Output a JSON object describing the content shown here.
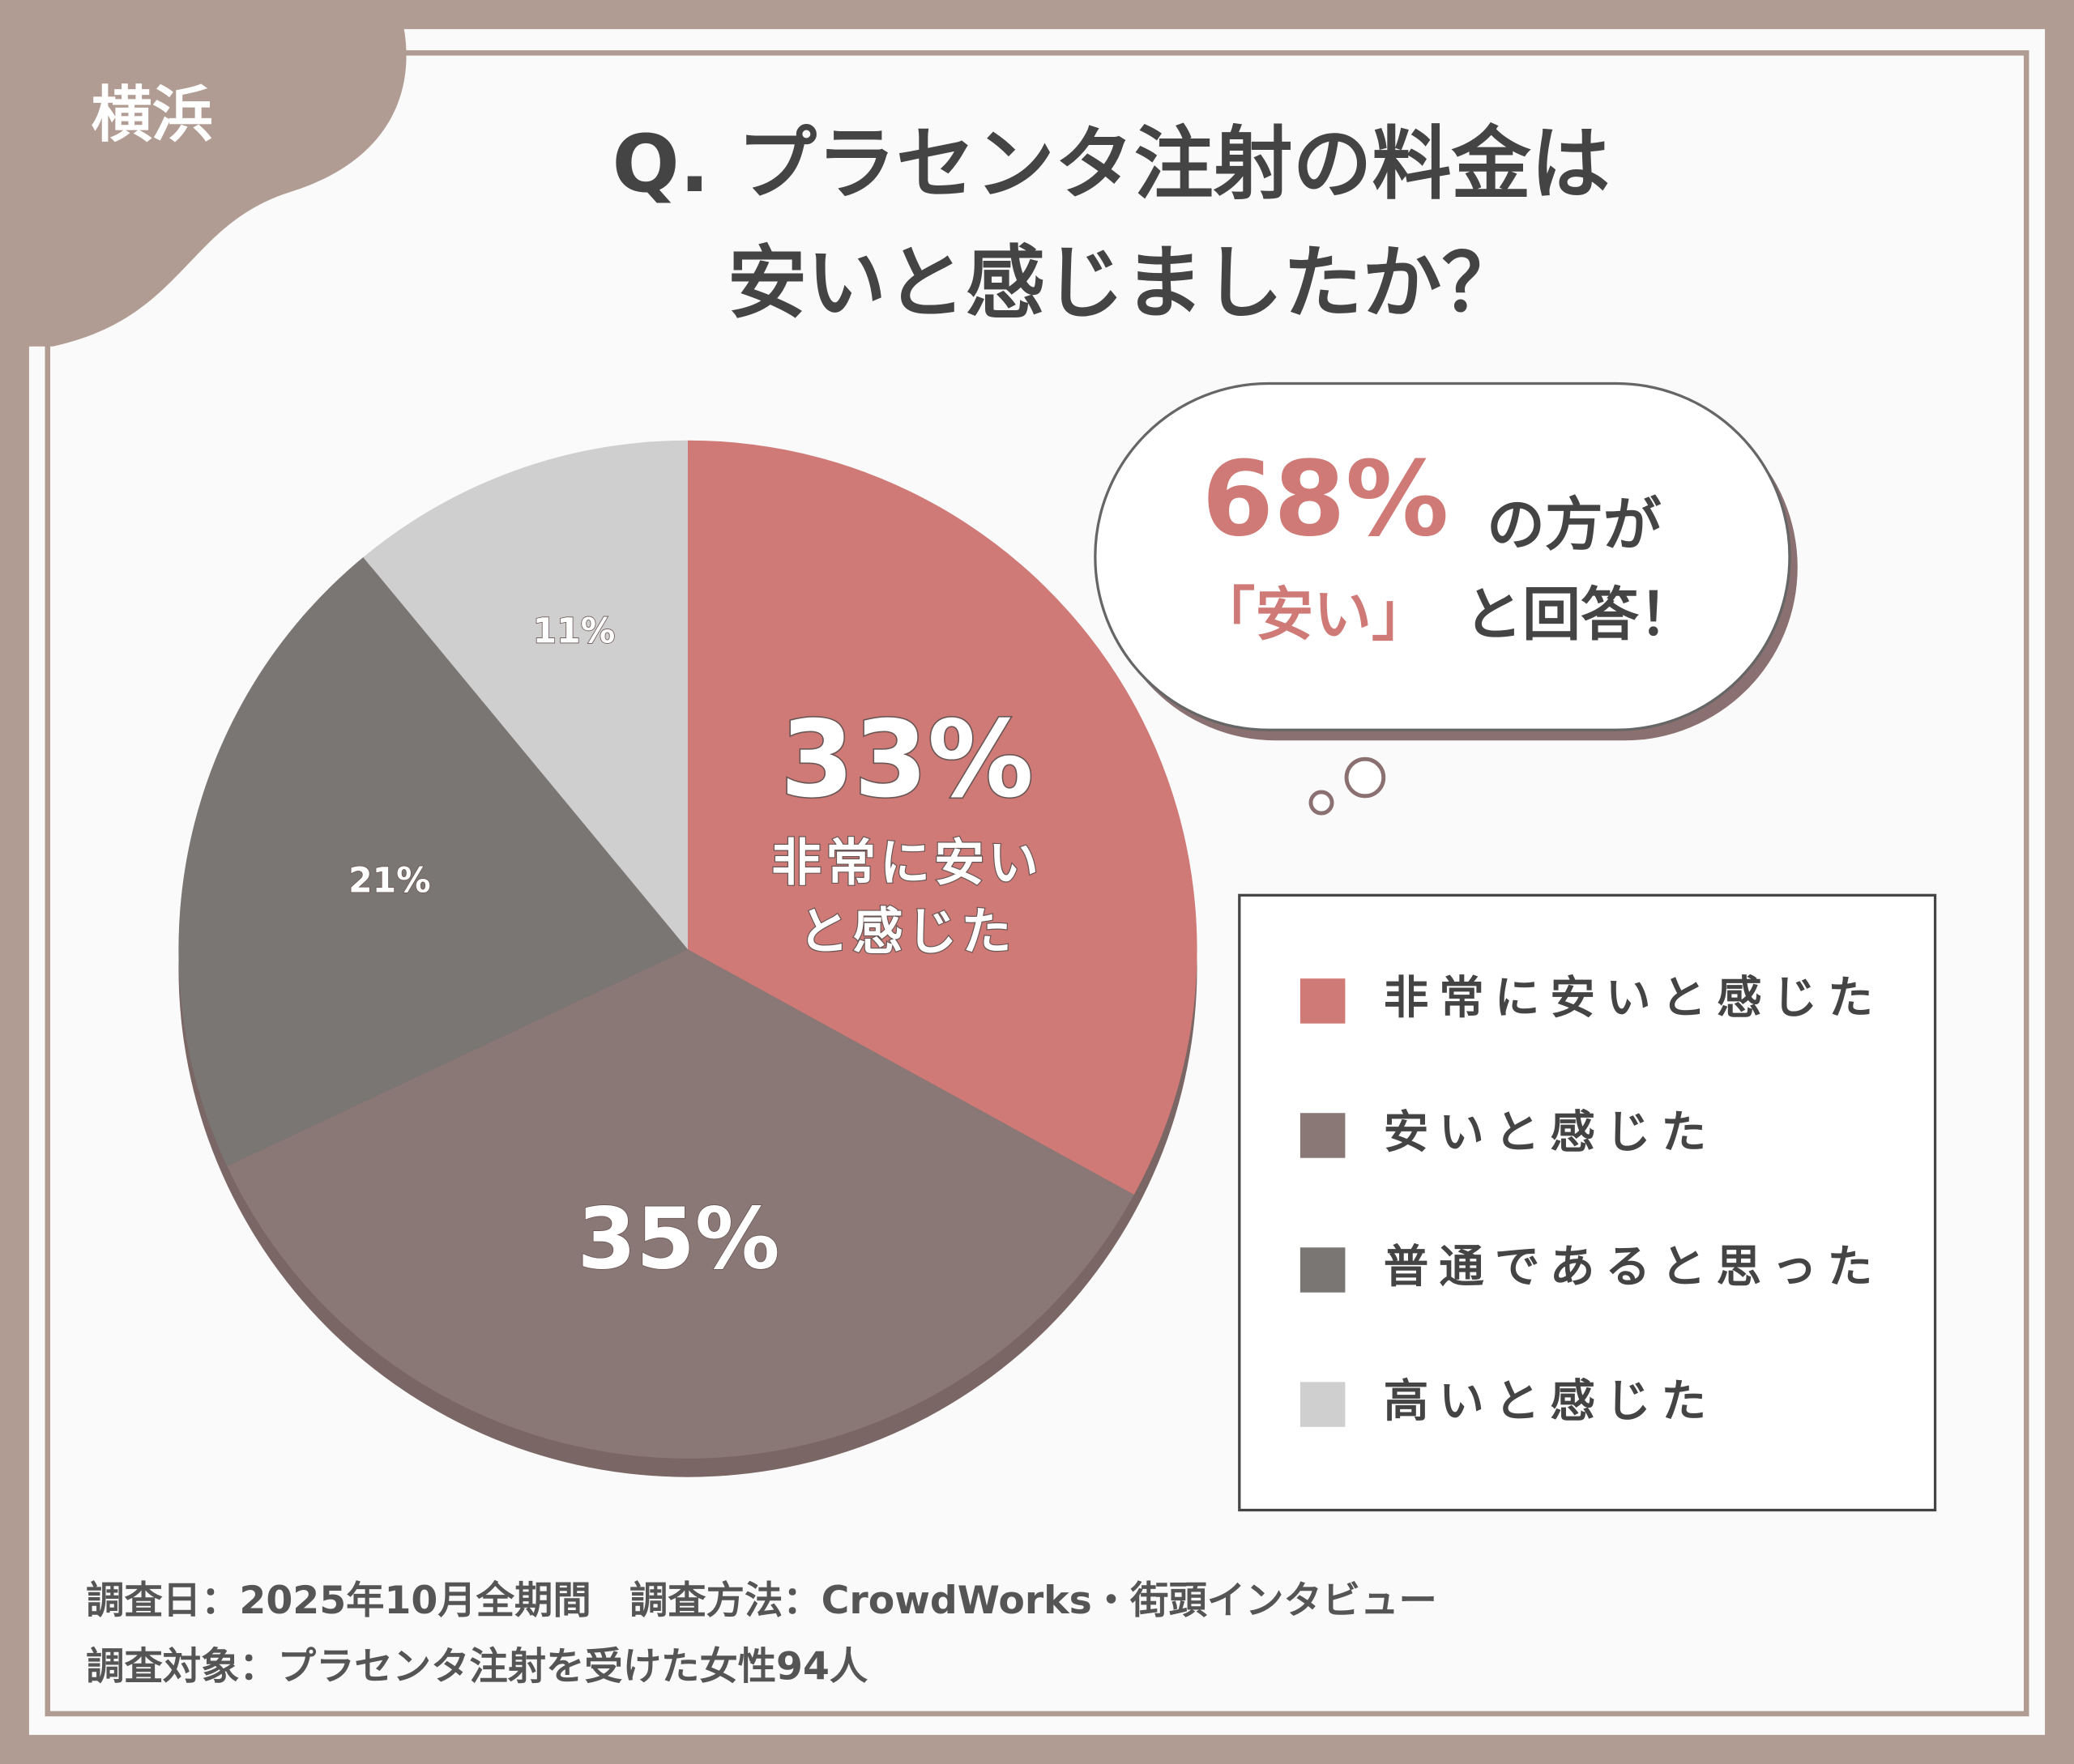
{
  "tag": "横浜",
  "chart_data": {
    "type": "pie",
    "title": [
      "Q. プラセンタ注射の料金は",
      "安いと感じましたか？"
    ],
    "categories": [
      "非常に安いと感じた",
      "安いと感じた",
      "普通であると思った",
      "高いと感じた"
    ],
    "values": [
      33,
      35,
      21,
      11
    ],
    "value_labels": [
      "33%",
      "35%",
      "21%",
      "11%"
    ],
    "colors": [
      "#cf7a76",
      "#8a7877",
      "#7a7673",
      "#cfcfcf"
    ],
    "slice_label_lines": [
      "非常に安い",
      "と感じた"
    ],
    "legend": "right",
    "annotation": {
      "highlight": "68%",
      "text1": "の方が",
      "quote": "「安い」",
      "text2": "と回答！"
    }
  },
  "footer": [
    "調査日：2025年10月全期間　調査方法：CrowdWorks・街頭インタビュー",
    "調査対象：プラセンタ注射を受けた女性94人"
  ]
}
